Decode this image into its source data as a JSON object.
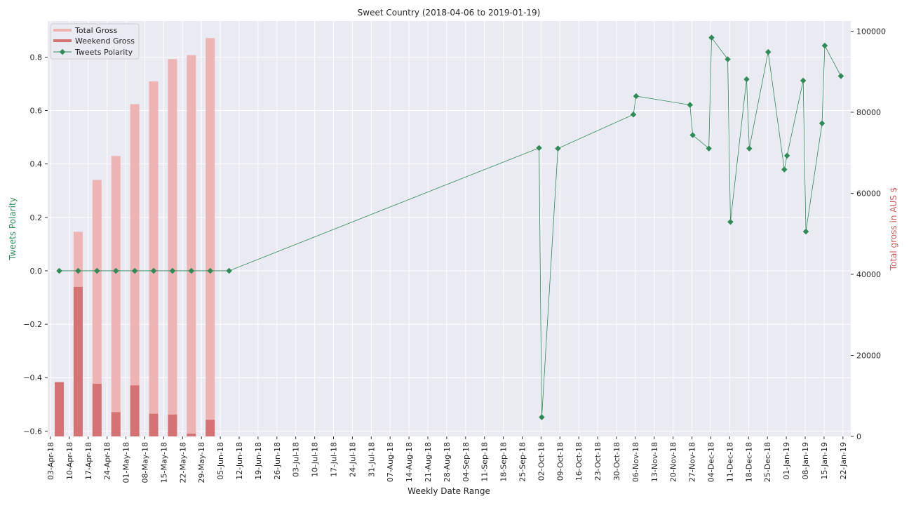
{
  "chart_data": {
    "type": "bar+line",
    "title": "Sweet Country (2018-04-06 to 2019-01-19)",
    "xlabel": "Weekly Date Range",
    "ylabel_left": "Tweets Polarity",
    "ylabel_right": "Total gross in AUS $",
    "x_ticks": [
      "03-Apr-18",
      "10-Apr-18",
      "17-Apr-18",
      "24-Apr-18",
      "01-May-18",
      "08-May-18",
      "15-May-18",
      "22-May-18",
      "29-May-18",
      "05-Jun-18",
      "12-Jun-18",
      "19-Jun-18",
      "26-Jun-18",
      "03-Jul-18",
      "10-Jul-18",
      "17-Jul-18",
      "24-Jul-18",
      "31-Jul-18",
      "07-Aug-18",
      "14-Aug-18",
      "21-Aug-18",
      "28-Aug-18",
      "04-Sep-18",
      "11-Sep-18",
      "18-Sep-18",
      "25-Sep-18",
      "02-Oct-18",
      "09-Oct-18",
      "16-Oct-18",
      "23-Oct-18",
      "30-Oct-18",
      "06-Nov-18",
      "13-Nov-18",
      "20-Nov-18",
      "27-Nov-18",
      "04-Dec-18",
      "11-Dec-18",
      "18-Dec-18",
      "25-Dec-18",
      "01-Jan-19",
      "08-Jan-19",
      "15-Jan-19",
      "22-Jan-19"
    ],
    "ylim_left": [
      -0.62,
      0.935
    ],
    "yticks_left": [
      -0.6,
      -0.4,
      -0.2,
      0.0,
      0.2,
      0.4,
      0.6,
      0.8
    ],
    "ytick_labels_left": [
      "−0.6",
      "−0.4",
      "−0.2",
      "0.0",
      "0.2",
      "0.4",
      "0.6",
      "0.8"
    ],
    "ylim_right": [
      0,
      102500
    ],
    "yticks_right": [
      0,
      20000,
      40000,
      60000,
      80000,
      100000
    ],
    "ytick_labels_right": [
      "0",
      "20000",
      "40000",
      "60000",
      "80000",
      "100000"
    ],
    "legend_position": "top-left",
    "colors": {
      "total_gross": "#eeb4b4",
      "weekend_gross": "#d57374",
      "polarity": "#2e8b57"
    },
    "bars": {
      "dates": [
        "2018-04-06",
        "2018-04-13",
        "2018-04-20",
        "2018-04-27",
        "2018-05-04",
        "2018-05-11",
        "2018-05-18",
        "2018-05-25",
        "2018-06-01",
        "2018-06-08"
      ],
      "total_gross": [
        13400,
        50500,
        63300,
        69200,
        82000,
        87600,
        93100,
        94100,
        98300,
        0
      ],
      "weekend_gross": [
        13400,
        36900,
        13000,
        6000,
        12600,
        5600,
        5400,
        700,
        4100,
        0
      ]
    },
    "series": [
      {
        "name": "Total Gross"
      },
      {
        "name": "Weekend Gross"
      },
      {
        "name": "Tweets Polarity",
        "dates": [
          "2018-04-06",
          "2018-04-13",
          "2018-04-20",
          "2018-04-27",
          "2018-05-04",
          "2018-05-11",
          "2018-05-18",
          "2018-05-25",
          "2018-06-01",
          "2018-06-08",
          "2018-10-01",
          "2018-10-02",
          "2018-10-08",
          "2018-11-05",
          "2018-11-06",
          "2018-11-26",
          "2018-11-27",
          "2018-12-03",
          "2018-12-04",
          "2018-12-10",
          "2018-12-11",
          "2018-12-17",
          "2018-12-18",
          "2018-12-25",
          "2018-12-31",
          "2019-01-01",
          "2019-01-07",
          "2019-01-08",
          "2019-01-14",
          "2019-01-15",
          "2019-01-21"
        ],
        "values": [
          0.0,
          0.0,
          0.0,
          0.0,
          0.0,
          0.0,
          0.0,
          0.0,
          0.0,
          0.0,
          0.46,
          -0.548,
          0.458,
          0.585,
          0.654,
          0.621,
          0.508,
          0.458,
          0.873,
          0.792,
          0.183,
          0.717,
          0.458,
          0.819,
          0.379,
          0.431,
          0.712,
          0.147,
          0.552,
          0.843,
          0.729
        ]
      }
    ]
  }
}
